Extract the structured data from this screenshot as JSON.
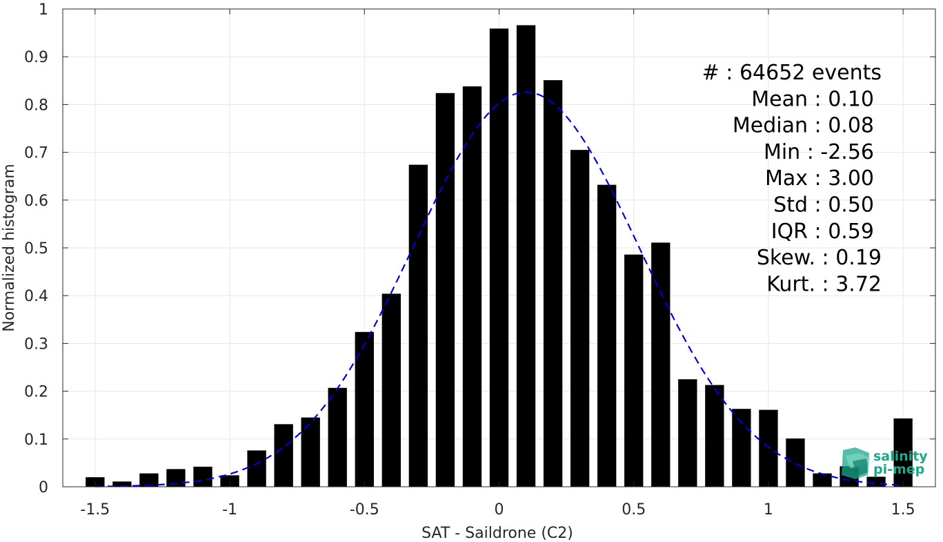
{
  "chart_data": {
    "type": "bar",
    "xlabel": "SAT - Saildrone (C2)",
    "ylabel": "Normalized histogram",
    "xlim": [
      -1.62,
      1.62
    ],
    "ylim": [
      0,
      1
    ],
    "grid": true,
    "xticks": [
      -1.5,
      -1,
      -0.5,
      0,
      0.5,
      1,
      1.5
    ],
    "xtick_labels": [
      "-1.5",
      "-1",
      "-0.5",
      "0",
      "0.5",
      "1",
      "1.5"
    ],
    "yticks": [
      0,
      0.1,
      0.2,
      0.3,
      0.4,
      0.5,
      0.6,
      0.7,
      0.8,
      0.9,
      1
    ],
    "ytick_labels": [
      "0",
      "0.1",
      "0.2",
      "0.3",
      "0.4",
      "0.5",
      "0.6",
      "0.7",
      "0.8",
      "0.9",
      "1"
    ],
    "bar_color": "#000000",
    "bars": {
      "x": [
        -1.5,
        -1.4,
        -1.3,
        -1.2,
        -1.1,
        -1.0,
        -0.9,
        -0.8,
        -0.7,
        -0.6,
        -0.5,
        -0.4,
        -0.3,
        -0.2,
        -0.1,
        0.0,
        0.1,
        0.2,
        0.3,
        0.4,
        0.5,
        0.6,
        0.7,
        0.8,
        0.9,
        1.0,
        1.1,
        1.2,
        1.3,
        1.4,
        1.5
      ],
      "values": [
        0.02,
        0.011,
        0.028,
        0.037,
        0.042,
        0.024,
        0.076,
        0.131,
        0.145,
        0.207,
        0.324,
        0.404,
        0.674,
        0.824,
        0.838,
        0.959,
        0.966,
        0.851,
        0.705,
        0.632,
        0.486,
        0.511,
        0.225,
        0.213,
        0.163,
        0.161,
        0.101,
        0.028,
        0.043,
        0.021,
        0.143
      ]
    },
    "fit": {
      "type": "gaussian",
      "style": "dashed",
      "color": "#0000dd",
      "mean": 0.1,
      "peak": 0.826,
      "sigma": 0.42,
      "x_range": [
        -1.5,
        1.5
      ]
    },
    "stats": [
      {
        "label": "#  : 64652 events"
      },
      {
        "label": "Mean : 0.10"
      },
      {
        "label": "Median : 0.08"
      },
      {
        "label": "Min : -2.56"
      },
      {
        "label": "Max : 3.00"
      },
      {
        "label": "Std : 0.50"
      },
      {
        "label": "IQR : 0.59"
      },
      {
        "label": "Skew. : 0.19"
      },
      {
        "label": "Kurt. : 3.72"
      }
    ]
  },
  "logo": {
    "line1": "salinity",
    "line2": "pi-mep",
    "color": "#1aa88a"
  }
}
